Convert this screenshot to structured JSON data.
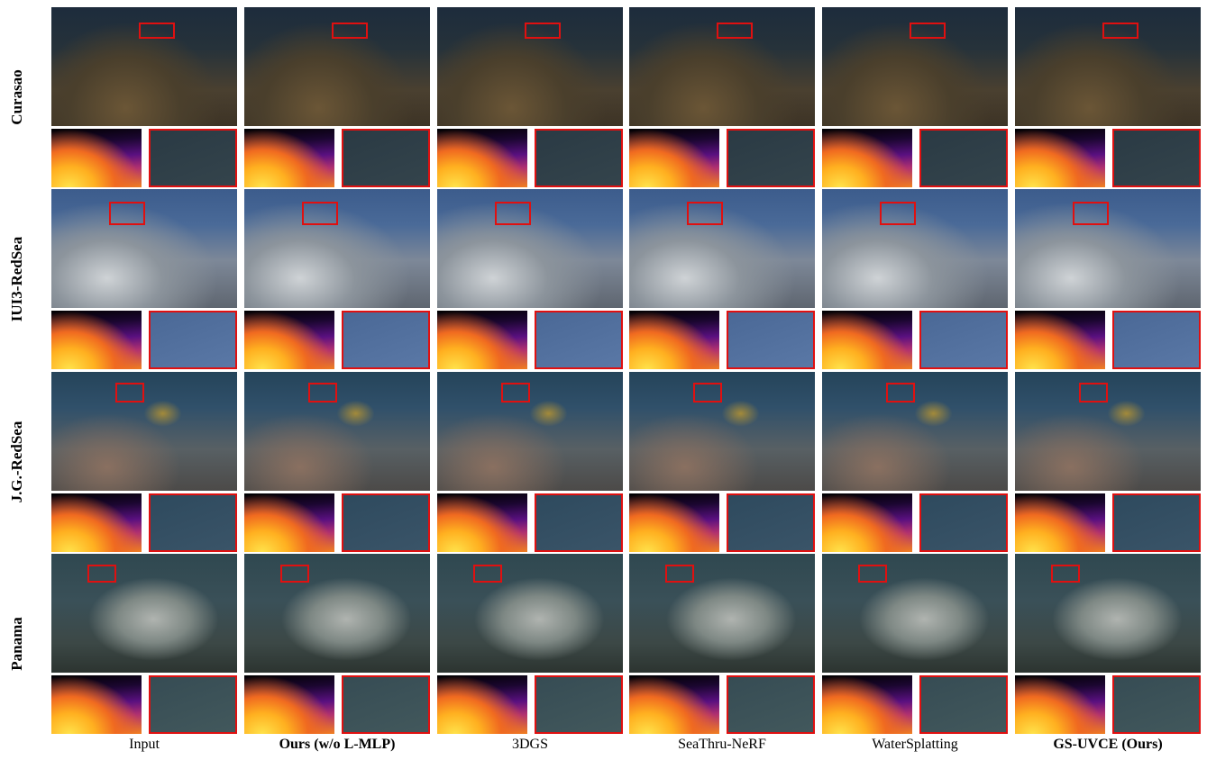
{
  "figure": {
    "rows": [
      {
        "label": "Curasao"
      },
      {
        "label": "IUI3-RedSea"
      },
      {
        "label": "J.G.-RedSea"
      },
      {
        "label": "Panama"
      }
    ],
    "columns": [
      {
        "label": "Input",
        "bold": false
      },
      {
        "label": "Ours (w/o L-MLP)",
        "bold": true
      },
      {
        "label": "3DGS",
        "bold": false
      },
      {
        "label": "SeaThru-NeRF",
        "bold": false
      },
      {
        "label": "WaterSplatting",
        "bold": false
      },
      {
        "label": "GS-UVCE (Ours)",
        "bold": true
      }
    ]
  }
}
